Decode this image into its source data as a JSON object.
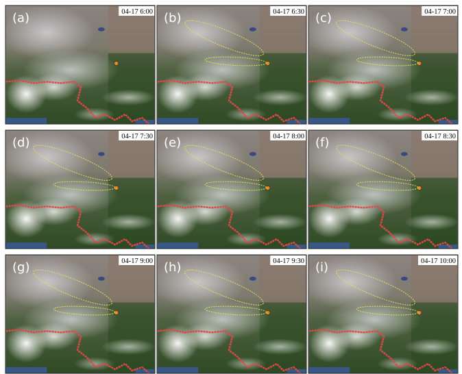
{
  "panels": [
    {
      "label": "(a)",
      "time": "04-17 6:00"
    },
    {
      "label": "(b)",
      "time": "04-17 6:30"
    },
    {
      "label": "(c)",
      "time": "04-17 7:00"
    },
    {
      "label": "(d)",
      "time": "04-17 7:30"
    },
    {
      "label": "(e)",
      "time": "04-17 8:00"
    },
    {
      "label": "(f)",
      "time": "04-17 8:30"
    },
    {
      "label": "(g)",
      "time": "04-17 9:00"
    },
    {
      "label": "(h)",
      "time": "04-17 9:30"
    },
    {
      "label": "(i)",
      "time": "04-17 10:00"
    }
  ]
}
